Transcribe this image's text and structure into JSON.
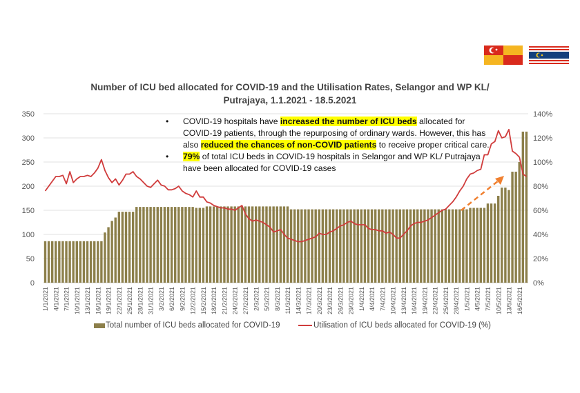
{
  "title": "Number of ICU bed allocated for COVID-19 and the Utilisation Rates, Selangor and WP KL/ Putrajaya, 1.1.2021 - 18.5.2021",
  "flags": [
    "Selangor flag",
    "WP Kuala Lumpur flag"
  ],
  "annotations": [
    [
      {
        "t": "COVID-19 hospitals have "
      },
      {
        "t": "increased the number of ICU beds",
        "hl": true
      },
      {
        "t": " allocated for COVID-19 patients, through the repurposing of ordinary wards. However, this has also "
      },
      {
        "t": "reduced the chances of non-COVID patients",
        "hl": true
      },
      {
        "t": " to receive proper critical care."
      }
    ],
    [
      {
        "t": "79%",
        "hl": true
      },
      {
        "t": " of total ICU beds in COVID-19 hospitals in Selangor and WP KL/ Putrajaya have been allocated for COVID-19 cases"
      }
    ]
  ],
  "bullet": "•",
  "colors": {
    "bars": "#8c7f4a",
    "line": "#d03c3c",
    "arrow": "#f08030",
    "grid": "#e0e0e0",
    "highlight": "#ffff00"
  },
  "chart_data": {
    "type": "bar+line",
    "title": "Number of ICU bed allocated for COVID-19 and the Utilisation Rates, Selangor and WP KL/ Putrajaya, 1.1.2021 - 18.5.2021",
    "y_left": {
      "ylim": [
        0,
        350
      ],
      "ticks": [
        0,
        50,
        100,
        150,
        200,
        250,
        300,
        350
      ]
    },
    "y_right": {
      "ylim": [
        0,
        140
      ],
      "ticks": [
        "0%",
        "20%",
        "40%",
        "60%",
        "80%",
        "100%",
        "120%",
        "140%"
      ]
    },
    "grid": true,
    "legend": "bottom",
    "tick_every": 3,
    "categories": [
      "1/1/2021",
      "2/1/2021",
      "3/1/2021",
      "4/1/2021",
      "5/1/2021",
      "6/1/2021",
      "7/1/2021",
      "8/1/2021",
      "9/1/2021",
      "10/1/2021",
      "11/1/2021",
      "12/1/2021",
      "13/1/2021",
      "14/1/2021",
      "15/1/2021",
      "16/1/2021",
      "17/1/2021",
      "18/1/2021",
      "19/1/2021",
      "20/1/2021",
      "21/1/2021",
      "22/1/2021",
      "23/1/2021",
      "24/1/2021",
      "25/1/2021",
      "26/1/2021",
      "27/1/2021",
      "28/1/2021",
      "29/1/2021",
      "30/1/2021",
      "31/1/2021",
      "1/2/2021",
      "2/2/2021",
      "3/2/2021",
      "4/2/2021",
      "5/2/2021",
      "6/2/2021",
      "7/2/2021",
      "8/2/2021",
      "9/2/2021",
      "10/2/2021",
      "11/2/2021",
      "12/2/2021",
      "13/2/2021",
      "14/2/2021",
      "15/2/2021",
      "16/2/2021",
      "17/2/2021",
      "18/2/2021",
      "19/2/2021",
      "20/2/2021",
      "21/2/2021",
      "22/2/2021",
      "23/2/2021",
      "24/2/2021",
      "25/2/2021",
      "26/2/2021",
      "27/2/2021",
      "28/2/2021",
      "1/3/2021",
      "2/3/2021",
      "3/3/2021",
      "4/3/2021",
      "5/3/2021",
      "6/3/2021",
      "7/3/2021",
      "8/3/2021",
      "9/3/2021",
      "10/3/2021",
      "11/3/2021",
      "12/3/2021",
      "13/3/2021",
      "14/3/2021",
      "15/3/2021",
      "16/3/2021",
      "17/3/2021",
      "18/3/2021",
      "19/3/2021",
      "20/3/2021",
      "21/3/2021",
      "22/3/2021",
      "23/3/2021",
      "24/3/2021",
      "25/3/2021",
      "26/3/2021",
      "27/3/2021",
      "28/3/2021",
      "29/3/2021",
      "30/3/2021",
      "31/3/2021",
      "1/4/2021",
      "2/4/2021",
      "3/4/2021",
      "4/4/2021",
      "5/4/2021",
      "6/4/2021",
      "7/4/2021",
      "8/4/2021",
      "9/4/2021",
      "10/4/2021",
      "11/4/2021",
      "12/4/2021",
      "13/4/2021",
      "14/4/2021",
      "15/4/2021",
      "16/4/2021",
      "17/4/2021",
      "18/4/2021",
      "19/4/2021",
      "20/4/2021",
      "21/4/2021",
      "22/4/2021",
      "23/4/2021",
      "24/4/2021",
      "25/4/2021",
      "26/4/2021",
      "27/4/2021",
      "28/4/2021",
      "29/4/2021",
      "30/4/2021",
      "1/5/2021",
      "2/5/2021",
      "3/5/2021",
      "4/5/2021",
      "5/5/2021",
      "6/5/2021",
      "7/5/2021",
      "8/5/2021",
      "9/5/2021",
      "10/5/2021",
      "11/5/2021",
      "12/5/2021",
      "13/5/2021",
      "14/5/2021",
      "15/5/2021",
      "16/5/2021",
      "17/5/2021",
      "18/5/2021"
    ],
    "series": [
      {
        "name": "Total number of ICU beds allocated for COVID-19",
        "type": "bar",
        "axis": "left",
        "values": [
          86,
          86,
          86,
          86,
          86,
          86,
          86,
          86,
          86,
          86,
          86,
          86,
          86,
          86,
          86,
          86,
          86,
          104,
          115,
          128,
          135,
          147,
          147,
          147,
          147,
          147,
          157,
          157,
          157,
          157,
          157,
          157,
          157,
          157,
          157,
          157,
          157,
          157,
          157,
          157,
          157,
          157,
          157,
          155,
          155,
          155,
          158,
          158,
          158,
          158,
          158,
          158,
          158,
          158,
          158,
          158,
          158,
          158,
          158,
          158,
          158,
          158,
          158,
          158,
          158,
          158,
          158,
          158,
          158,
          158,
          152,
          152,
          152,
          152,
          152,
          152,
          152,
          152,
          152,
          152,
          152,
          152,
          152,
          152,
          152,
          152,
          152,
          152,
          152,
          152,
          152,
          152,
          152,
          152,
          152,
          152,
          152,
          152,
          152,
          152,
          152,
          152,
          152,
          152,
          152,
          152,
          152,
          152,
          152,
          152,
          152,
          152,
          152,
          152,
          152,
          152,
          152,
          152,
          152,
          152,
          152,
          155,
          155,
          155,
          155,
          155,
          164,
          164,
          164,
          180,
          197,
          197,
          192,
          230,
          230,
          250,
          313,
          313
        ]
      },
      {
        "name": "Utilisation of ICU beds allocated for COVID-19 (%)",
        "type": "line",
        "axis": "right",
        "values": [
          76,
          80,
          84,
          88,
          88,
          89,
          82,
          92,
          83,
          86,
          88,
          88,
          89,
          88,
          91,
          95,
          102,
          93,
          87,
          83,
          86,
          81,
          85,
          90,
          90,
          92,
          88,
          86,
          83,
          80,
          79,
          82,
          85,
          81,
          80,
          77,
          77,
          78,
          80,
          76,
          74,
          73,
          71,
          76,
          71,
          71,
          67,
          66,
          64,
          63,
          62,
          62,
          61,
          61,
          60,
          62,
          64,
          57,
          53,
          51,
          52,
          51,
          50,
          48,
          46,
          42,
          43,
          44,
          40,
          37,
          36,
          35,
          34,
          34,
          35,
          36,
          37,
          38,
          41,
          40,
          40,
          42,
          43,
          45,
          47,
          48,
          50,
          51,
          49,
          48,
          48,
          48,
          45,
          44,
          44,
          43,
          43,
          41,
          42,
          40,
          37,
          37,
          40,
          43,
          47,
          49,
          50,
          50,
          51,
          52,
          54,
          56,
          58,
          60,
          61,
          64,
          67,
          71,
          76,
          80,
          86,
          90,
          91,
          93,
          94,
          106,
          106,
          115,
          117,
          126,
          120,
          121,
          127,
          109,
          107,
          104,
          90,
          88
        ]
      }
    ]
  }
}
